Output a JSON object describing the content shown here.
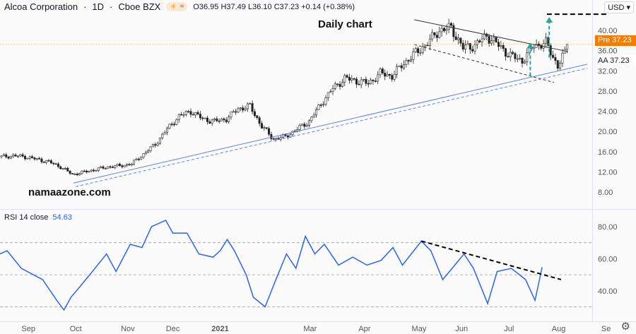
{
  "header": {
    "symbol": "Alcoa Corporation",
    "interval": "1D",
    "exchange": "Cboe BZX",
    "sep": "·",
    "open": "O36.95",
    "high": "H37.49",
    "low": "L36.10",
    "close": "C37.23",
    "change": "+0.14 (+0.38%)",
    "badge_icons": [
      "sun-icon",
      "wave-icon"
    ]
  },
  "currency_button": "USD ▾",
  "price_tags": {
    "pre": "Pre  37.23",
    "aa": "AA  37.23",
    "pre_color": "#f57c00"
  },
  "annotations": {
    "daily": "Daily chart",
    "site": "namaazone.com"
  },
  "rsi": {
    "title": "RSI 14 close",
    "value": "54.63",
    "color": "#2962ff"
  },
  "chart_data": [
    {
      "type": "candlestick",
      "title": "Alcoa Corporation · 1D",
      "ylabel": "USD",
      "ylim": [
        5,
        44
      ],
      "yticks": [
        "40.00",
        "36.00",
        "32.00",
        "28.00",
        "24.00",
        "20.00",
        "16.00",
        "12.00",
        "8.00"
      ],
      "ytick_values": [
        40,
        36,
        32,
        28,
        24,
        20,
        16,
        12,
        8
      ],
      "xticks": [
        {
          "label": "Sep",
          "day": 12
        },
        {
          "label": "Oct",
          "day": 32
        },
        {
          "label": "Nov",
          "day": 54
        },
        {
          "label": "Dec",
          "day": 73
        },
        {
          "label": "2021",
          "day": 93
        },
        {
          "label": "Mar",
          "day": 131
        },
        {
          "label": "Apr",
          "day": 154
        },
        {
          "label": "May",
          "day": 177
        },
        {
          "label": "Jun",
          "day": 195
        },
        {
          "label": "Jul",
          "day": 215
        },
        {
          "label": "Aug",
          "day": 236
        },
        {
          "label": "Se",
          "day": 256
        }
      ],
      "xrange_days": [
        0,
        250
      ],
      "weekly_closes": [
        15,
        15.2,
        15,
        14.5,
        14,
        13,
        11.5,
        12,
        12.5,
        13,
        13.2,
        13.6,
        15.5,
        17.5,
        20.5,
        23,
        24,
        22.5,
        22,
        22.5,
        24.5,
        25,
        21,
        18.5,
        19,
        20.5,
        22,
        25.5,
        28.5,
        30.5,
        30,
        29.5,
        31.5,
        31,
        33.5,
        35.5,
        37.5,
        40,
        40.5,
        36.5,
        37,
        39,
        37,
        35,
        34,
        37,
        37.5,
        33,
        37.23
      ],
      "last_price": 37.23,
      "trendlines": [
        {
          "name": "support",
          "style": "solid",
          "color": "#5b7ff0",
          "from": [
            31,
            9.8
          ],
          "to": [
            248,
            33.3
          ]
        },
        {
          "name": "support-parallel",
          "style": "dashed",
          "color": "#5b7ff0",
          "from": [
            32,
            9.1
          ],
          "to": [
            248,
            32.5
          ]
        },
        {
          "name": "channel-upper",
          "style": "solid",
          "color": "#333333",
          "from": [
            175,
            42.1
          ],
          "to": [
            240,
            35.8
          ]
        },
        {
          "name": "channel-lower",
          "style": "dashed",
          "color": "#333333",
          "from": [
            175,
            37.2
          ],
          "to": [
            234,
            29.7
          ]
        },
        {
          "name": "target",
          "style": "dashed",
          "color": "#000000",
          "from": [
            231,
            43.2
          ],
          "to": [
            257,
            43.2
          ]
        }
      ],
      "arrows": [
        {
          "day": 224,
          "from": 31,
          "to": 37.4,
          "color": "#26a69a"
        },
        {
          "day": 232,
          "from": 34.6,
          "to": 42.5,
          "color": "#26a69a"
        }
      ]
    },
    {
      "type": "line",
      "title": "RSI 14 close",
      "ylim": [
        24,
        92
      ],
      "yticks": [
        "80.00",
        "60.00",
        "40.00"
      ],
      "ytick_values": [
        80,
        60,
        40
      ],
      "levels": [
        70,
        50,
        30
      ],
      "series": [
        {
          "name": "RSI 14",
          "color": "#2962ff",
          "days": [
            0,
            3,
            9,
            18,
            24,
            27,
            30,
            34,
            39,
            45,
            49,
            55,
            60,
            64,
            70,
            73,
            79,
            84,
            90,
            93,
            96,
            99,
            104,
            107,
            112,
            116,
            121,
            125,
            129,
            133,
            137,
            143,
            149,
            155,
            161,
            166,
            170,
            178,
            182,
            187,
            191,
            196,
            200,
            206,
            210,
            216,
            222,
            226,
            229
          ],
          "values": [
            63,
            65,
            54,
            47,
            34,
            28,
            36,
            43,
            52,
            63,
            52,
            69,
            67,
            80,
            84,
            76,
            76,
            63,
            61,
            65,
            72,
            65,
            50,
            36,
            30,
            45,
            63,
            54,
            74,
            63,
            69,
            56,
            61,
            56,
            59,
            67,
            56,
            71,
            65,
            47,
            54,
            63,
            54,
            32,
            52,
            54,
            47,
            34,
            54.63
          ]
        }
      ],
      "trendlines": [
        {
          "name": "rsi-resistance",
          "style": "dashed",
          "color": "#000000",
          "from": [
            178,
            71
          ],
          "to": [
            237,
            47
          ]
        }
      ]
    }
  ]
}
